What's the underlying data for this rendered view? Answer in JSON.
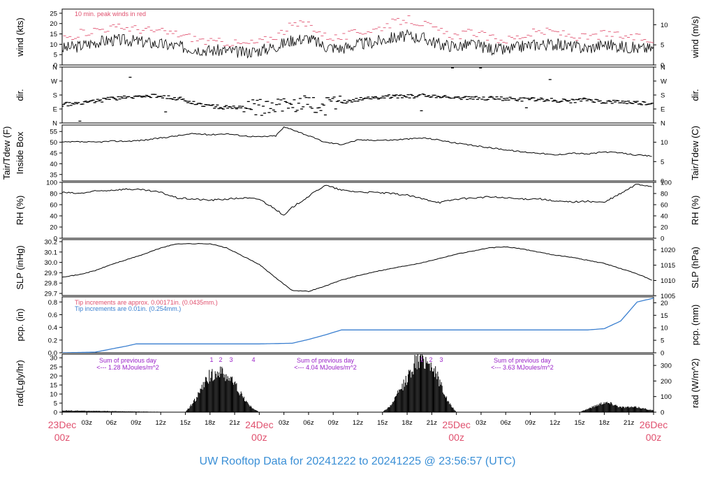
{
  "title": "UW Rooftop Data for 20241222  to  20241225 @ 23:56:57  (UTC)",
  "colors": {
    "peak": "#e0506e",
    "date": "#e0506e",
    "title": "#3a8fd6",
    "precip_line": "#3a7fd0",
    "rad_note": "#9a22c8",
    "ink": "#000000"
  },
  "time_axis": {
    "tick_labels": [
      "03z",
      "06z",
      "09z",
      "12z",
      "15z",
      "18z",
      "21z",
      "03z",
      "06z",
      "09z",
      "12z",
      "15z",
      "18z",
      "21z",
      "03z",
      "06z",
      "09z",
      "12z",
      "15z",
      "18z",
      "21z"
    ],
    "date_labels": [
      {
        "day": "23Dec",
        "hour": "00z"
      },
      {
        "day": "24Dec",
        "hour": "00z"
      },
      {
        "day": "25Dec",
        "hour": "00z"
      },
      {
        "day": "26Dec",
        "hour": "00z"
      }
    ]
  },
  "chart_data": [
    {
      "type": "line",
      "panel": "wind",
      "ylabel_left": "wind (kts)",
      "ylabel_right": "wind (m/s)",
      "left_ticks": [
        "0",
        "5",
        "10",
        "15",
        "20",
        "25"
      ],
      "right_ticks": [
        "0",
        "5",
        "10"
      ],
      "note": "10 min. peak winds in red",
      "x_range_hours": [
        0,
        72
      ],
      "ylim": [
        0,
        27
      ],
      "series": [
        {
          "name": "wind",
          "x": [
            0,
            2,
            4,
            6,
            8,
            10,
            12,
            14,
            16,
            18,
            20,
            22,
            24,
            26,
            28,
            30,
            32,
            34,
            36,
            38,
            40,
            42,
            44,
            46,
            48,
            50,
            52,
            54,
            56,
            58,
            60,
            62,
            64,
            66,
            68,
            70,
            72
          ],
          "y": [
            8,
            9,
            11,
            12,
            12,
            11,
            10,
            9,
            8,
            7,
            7,
            6,
            7,
            9,
            12,
            13,
            9,
            8,
            10,
            11,
            13,
            14,
            13,
            10,
            9,
            10,
            8,
            7,
            9,
            10,
            10,
            9,
            8,
            10,
            9,
            8,
            8
          ]
        },
        {
          "name": "10 min. peak winds",
          "x": [
            0,
            2,
            4,
            6,
            8,
            10,
            12,
            14,
            16,
            18,
            20,
            22,
            24,
            26,
            28,
            30,
            32,
            34,
            36,
            38,
            40,
            42,
            44,
            46,
            48,
            50,
            52,
            54,
            56,
            58,
            60,
            62,
            64,
            66,
            68,
            70,
            72
          ],
          "y": [
            13,
            15,
            17,
            18,
            18,
            17,
            16,
            15,
            13,
            11,
            11,
            10,
            11,
            14,
            19,
            20,
            14,
            13,
            16,
            17,
            20,
            22,
            20,
            16,
            14,
            16,
            13,
            12,
            14,
            16,
            16,
            14,
            13,
            15,
            14,
            13,
            12
          ]
        }
      ]
    },
    {
      "type": "scatter",
      "panel": "direction",
      "ylabel_left": "dir.",
      "ylabel_right": "dir.",
      "left_ticks": [
        "N",
        "E",
        "S",
        "W",
        "N"
      ],
      "right_ticks": [
        "N",
        "E",
        "S",
        "W",
        "N"
      ],
      "ylim": [
        0,
        360
      ],
      "series": [
        {
          "name": "dir",
          "x": [
            0,
            2,
            4,
            6,
            8,
            10,
            12,
            14,
            16,
            18,
            20,
            22,
            24,
            26,
            28,
            30,
            32,
            34,
            36,
            38,
            40,
            42,
            44,
            46,
            48,
            50,
            52,
            54,
            56,
            58,
            60,
            62,
            64,
            66,
            68,
            70,
            72
          ],
          "y": [
            120,
            125,
            140,
            155,
            165,
            170,
            175,
            160,
            130,
            110,
            100,
            95,
            100,
            110,
            130,
            120,
            110,
            130,
            150,
            165,
            170,
            170,
            175,
            170,
            165,
            160,
            160,
            155,
            150,
            155,
            145,
            140,
            150,
            135,
            135,
            130,
            125
          ]
        }
      ]
    },
    {
      "type": "line",
      "panel": "temperature",
      "ylabel_left": "Tair/Tdew (F)",
      "ylabel_left2": "Inside Box",
      "ylabel_right": "Tair/Tdew (C)",
      "left_ticks": [
        "35",
        "40",
        "45",
        "50",
        "55"
      ],
      "right_ticks": [
        "0",
        "5",
        "10"
      ],
      "ylim": [
        32,
        58
      ],
      "series": [
        {
          "name": "Tair",
          "x": [
            0,
            2,
            4,
            6,
            8,
            10,
            12,
            14,
            16,
            18,
            20,
            22,
            24,
            26,
            27,
            28,
            30,
            32,
            34,
            36,
            38,
            40,
            42,
            44,
            46,
            48,
            50,
            52,
            54,
            56,
            58,
            60,
            62,
            64,
            66,
            68,
            70,
            72
          ],
          "y": [
            50,
            50.2,
            50,
            50.5,
            50.5,
            51,
            52,
            53,
            54,
            53.5,
            54,
            53,
            52.5,
            53,
            57,
            56,
            53,
            50,
            49,
            51,
            51,
            51,
            51.5,
            52,
            51,
            49.5,
            48.5,
            47.5,
            46.5,
            45.5,
            45,
            44,
            45,
            44.5,
            45.5,
            45,
            44,
            43.5
          ]
        }
      ]
    },
    {
      "type": "line",
      "panel": "relative_humidity",
      "ylabel_left": "RH (%)",
      "ylabel_right": "RH (%)",
      "left_ticks": [
        "0",
        "20",
        "40",
        "60",
        "80",
        "100"
      ],
      "right_ticks": [
        "0",
        "20",
        "40",
        "60",
        "80",
        "100"
      ],
      "ylim": [
        0,
        100
      ],
      "series": [
        {
          "name": "RH",
          "x": [
            0,
            2,
            4,
            6,
            8,
            10,
            12,
            14,
            16,
            18,
            20,
            22,
            24,
            26,
            27,
            28,
            30,
            32,
            34,
            36,
            38,
            40,
            42,
            44,
            46,
            48,
            50,
            52,
            54,
            56,
            58,
            60,
            62,
            64,
            66,
            68,
            70,
            72
          ],
          "y": [
            82,
            80,
            84,
            86,
            88,
            86,
            82,
            72,
            70,
            68,
            70,
            72,
            70,
            52,
            40,
            55,
            75,
            95,
            86,
            83,
            82,
            80,
            77,
            70,
            64,
            70,
            72,
            74,
            72,
            70,
            71,
            66,
            65,
            66,
            64,
            80,
            97,
            92
          ]
        }
      ]
    },
    {
      "type": "line",
      "panel": "pressure",
      "ylabel_left": "SLP (inHg)",
      "ylabel_right": "SLP (hPa)",
      "left_ticks": [
        "29.7",
        "29.8",
        "29.9",
        "30.0",
        "30.1",
        "30.2"
      ],
      "right_ticks": [
        "1005",
        "1010",
        "1015",
        "1020"
      ],
      "ylim": [
        29.68,
        30.22
      ],
      "series": [
        {
          "name": "SLP",
          "x": [
            0,
            2,
            4,
            6,
            8,
            10,
            12,
            14,
            16,
            18,
            20,
            22,
            24,
            26,
            28,
            30,
            32,
            34,
            36,
            38,
            40,
            42,
            44,
            46,
            48,
            50,
            52,
            54,
            56,
            58,
            60,
            62,
            64,
            66,
            68,
            70,
            72
          ],
          "y": [
            29.86,
            29.88,
            29.92,
            29.98,
            30.03,
            30.08,
            30.14,
            30.18,
            30.18,
            30.18,
            30.14,
            30.06,
            29.98,
            29.85,
            29.73,
            29.72,
            29.77,
            29.83,
            29.87,
            29.91,
            29.94,
            29.97,
            30.0,
            30.04,
            30.08,
            30.11,
            30.14,
            30.15,
            30.13,
            30.1,
            30.07,
            30.05,
            30.02,
            29.99,
            29.94,
            29.89,
            29.82
          ]
        }
      ]
    },
    {
      "type": "area",
      "panel": "precipitation",
      "ylabel_left": "pcp. (in)",
      "ylabel_right": "pcp. (mm)",
      "left_ticks": [
        "0.0",
        "0.2",
        "0.4",
        "0.6",
        "0.8"
      ],
      "right_ticks": [
        "0",
        "5",
        "10",
        "15",
        "20"
      ],
      "ylim": [
        0,
        0.88
      ],
      "notes": [
        "Tip increments are approx. 0.00171in. (0.0435mm.)",
        "Tip increments are 0.01in. (0.254mm.)"
      ],
      "series": [
        {
          "name": "accumulated precipitation",
          "x": [
            0,
            4,
            6,
            8,
            9,
            24,
            28,
            30,
            32,
            34,
            60,
            62,
            64,
            66,
            68,
            70,
            72
          ],
          "y": [
            0,
            0.01,
            0.06,
            0.11,
            0.14,
            0.14,
            0.15,
            0.21,
            0.28,
            0.36,
            0.36,
            0.36,
            0.36,
            0.38,
            0.5,
            0.8,
            0.86
          ]
        }
      ]
    },
    {
      "type": "area",
      "panel": "radiation",
      "ylabel_left": "rad(Lgly/hr)",
      "ylabel_right": "rad (W/m^2)",
      "left_ticks": [
        "0",
        "5",
        "10",
        "15",
        "20",
        "25",
        "30"
      ],
      "right_ticks": [
        "0",
        "100",
        "200",
        "300"
      ],
      "ylim": [
        0,
        32
      ],
      "notes": [
        {
          "line1": "Sum of previous day",
          "line2": "<--- 1.28 MJoules/m^2"
        },
        {
          "line1": "Sum of previous day",
          "line2": "<--- 4.04 MJoules/m^2"
        },
        {
          "line1": "Sum of previous day",
          "line2": "<--- 3.63 MJoules/m^2"
        }
      ],
      "markers": [
        "1",
        "2",
        "3",
        "4",
        "1",
        "2",
        "3"
      ],
      "series": [
        {
          "name": "radiation",
          "x": [
            0,
            15,
            16,
            17,
            18,
            19,
            20,
            21,
            22,
            23,
            24,
            39,
            40,
            41,
            42,
            43,
            44,
            45,
            46,
            47,
            48,
            63,
            64,
            65,
            66,
            67,
            68,
            69,
            70,
            71,
            72
          ],
          "y": [
            1,
            0,
            6,
            14,
            22,
            24,
            22,
            17,
            9,
            3,
            0,
            0,
            4,
            12,
            20,
            30,
            32,
            28,
            18,
            6,
            0,
            0,
            2,
            4,
            6,
            5,
            3,
            3,
            3,
            2,
            1
          ]
        }
      ]
    }
  ]
}
